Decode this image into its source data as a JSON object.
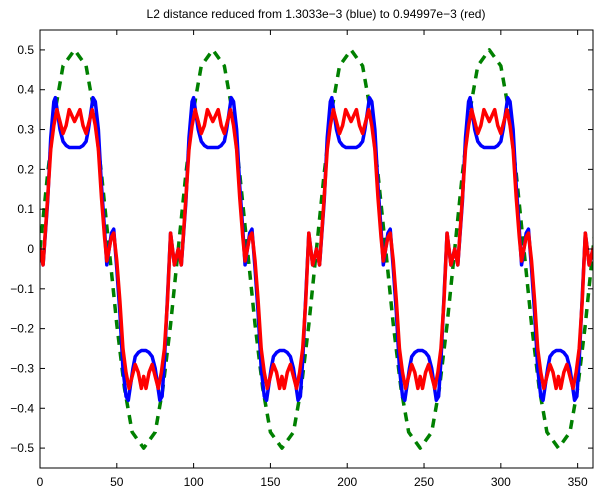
{
  "chart_data": {
    "type": "line",
    "title": "L2 distance reduced from 1.3033e−3 (blue) to 0.94997e−3 (red)",
    "xlabel": "",
    "ylabel": "",
    "xlim": [
      0,
      360
    ],
    "ylim": [
      -0.55,
      0.55
    ],
    "grid": false,
    "legend": "none",
    "x_ticks": [
      0,
      50,
      100,
      150,
      200,
      250,
      300,
      350
    ],
    "y_ticks": [
      0.5,
      0.4,
      0.3,
      0.2,
      0.1,
      0,
      -0.1,
      -0.2,
      -0.3,
      -0.4,
      -0.5
    ],
    "x_tick_labels": [
      "0",
      "50",
      "100",
      "150",
      "200",
      "250",
      "300",
      "350"
    ],
    "y_tick_labels": [
      "0.5",
      "0.4",
      "0.3",
      "0.2",
      "0.1",
      "0",
      "−0.1",
      "−0.2",
      "−0.3",
      "−0.4",
      "−0.5"
    ],
    "period": 90,
    "series": [
      {
        "color": "#008000",
        "style": "dashed",
        "x": [
          0,
          5,
          10,
          15,
          22.5,
          30,
          35,
          40,
          45,
          50,
          55,
          60,
          67.5,
          75,
          80,
          85,
          90
        ],
        "y": [
          0,
          0.19,
          0.35,
          0.46,
          0.5,
          0.46,
          0.35,
          0.19,
          0,
          -0.19,
          -0.35,
          -0.46,
          -0.5,
          -0.46,
          -0.35,
          -0.19,
          0
        ]
      },
      {
        "color": "#0000ff",
        "style": "solid",
        "x": [
          0,
          2,
          5,
          7,
          9,
          10,
          11.5,
          13,
          15,
          17,
          19,
          22.5,
          26,
          28,
          30,
          31.5,
          33,
          34.5,
          36,
          38,
          40,
          42,
          43.5,
          45,
          46.5,
          48,
          50,
          52,
          54,
          56,
          57.5,
          59,
          60.5,
          62,
          64,
          66,
          67.5,
          69,
          71,
          73,
          75,
          76.5,
          78,
          79.5,
          81,
          83,
          85,
          87.5,
          90
        ],
        "y": [
          0,
          -0.04,
          0.12,
          0.28,
          0.37,
          0.38,
          0.34,
          0.3,
          0.27,
          0.26,
          0.255,
          0.255,
          0.255,
          0.26,
          0.27,
          0.3,
          0.34,
          0.38,
          0.37,
          0.3,
          0.16,
          0.05,
          -0.04,
          0,
          0.04,
          0.05,
          -0.05,
          -0.16,
          -0.3,
          -0.37,
          -0.38,
          -0.34,
          -0.3,
          -0.27,
          -0.26,
          -0.255,
          -0.255,
          -0.255,
          -0.26,
          -0.27,
          -0.3,
          -0.34,
          -0.38,
          -0.37,
          -0.28,
          -0.12,
          0.04,
          -0.04,
          0
        ]
      },
      {
        "color": "#ff0000",
        "style": "solid",
        "x": [
          0,
          2,
          5,
          7,
          9,
          11,
          13,
          15,
          17,
          19,
          22.5,
          26,
          28,
          30,
          32,
          34,
          36,
          38,
          40,
          42,
          43.5,
          45,
          46.5,
          48,
          50,
          52,
          54,
          56,
          58,
          60,
          62,
          64,
          66,
          67.5,
          69,
          71,
          73,
          75,
          77,
          79,
          81,
          83,
          85,
          87.5,
          90
        ],
        "y": [
          0,
          -0.04,
          0.13,
          0.25,
          0.31,
          0.35,
          0.32,
          0.29,
          0.31,
          0.35,
          0.32,
          0.35,
          0.31,
          0.29,
          0.32,
          0.35,
          0.31,
          0.25,
          0.13,
          0.03,
          -0.03,
          0,
          0.03,
          0.04,
          -0.03,
          -0.13,
          -0.25,
          -0.31,
          -0.35,
          -0.32,
          -0.29,
          -0.31,
          -0.35,
          -0.32,
          -0.35,
          -0.31,
          -0.29,
          -0.32,
          -0.35,
          -0.31,
          -0.25,
          -0.13,
          0.04,
          -0.04,
          0
        ]
      }
    ]
  }
}
